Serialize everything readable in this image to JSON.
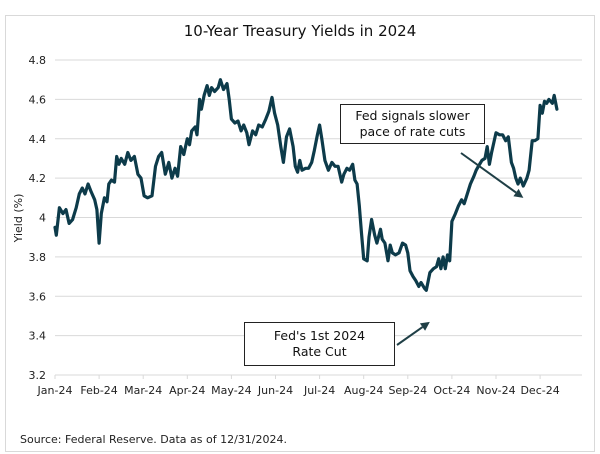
{
  "chart_data": {
    "type": "line",
    "title": "10-Year Treasury Yields in 2024",
    "xlabel": "",
    "ylabel": "Yield (%)",
    "ylim": [
      3.2,
      4.8
    ],
    "yticks": [
      "4.8",
      "4.6",
      "4.4",
      "4.2",
      "4",
      "3.8",
      "3.6",
      "3.4",
      "3.2"
    ],
    "ytick_values": [
      4.8,
      4.6,
      4.4,
      4.2,
      4.0,
      3.8,
      3.6,
      3.4,
      3.2
    ],
    "categories": [
      "Jan-24",
      "Feb-24",
      "Mar-24",
      "Apr-24",
      "May-24",
      "Jun-24",
      "Jul-24",
      "Aug-24",
      "Sep-24",
      "Oct-24",
      "Nov-24",
      "Dec-24"
    ],
    "grid": true,
    "legend": "none",
    "line_color": "#0d3b4a",
    "series": [
      {
        "name": "10-Year Treasury Yield",
        "x_unit": "months since Jan-24 tick",
        "points": [
          [
            0.0,
            3.95
          ],
          [
            0.03,
            3.91
          ],
          [
            0.1,
            4.05
          ],
          [
            0.18,
            4.02
          ],
          [
            0.25,
            4.04
          ],
          [
            0.32,
            3.97
          ],
          [
            0.4,
            3.99
          ],
          [
            0.48,
            4.05
          ],
          [
            0.55,
            4.12
          ],
          [
            0.62,
            4.15
          ],
          [
            0.68,
            4.12
          ],
          [
            0.75,
            4.17
          ],
          [
            0.82,
            4.13
          ],
          [
            0.9,
            4.09
          ],
          [
            0.95,
            4.04
          ],
          [
            1.0,
            3.87
          ],
          [
            1.05,
            4.02
          ],
          [
            1.12,
            4.1
          ],
          [
            1.18,
            4.08
          ],
          [
            1.22,
            4.17
          ],
          [
            1.28,
            4.19
          ],
          [
            1.35,
            4.18
          ],
          [
            1.4,
            4.31
          ],
          [
            1.45,
            4.27
          ],
          [
            1.5,
            4.3
          ],
          [
            1.58,
            4.27
          ],
          [
            1.65,
            4.33
          ],
          [
            1.72,
            4.29
          ],
          [
            1.8,
            4.31
          ],
          [
            1.88,
            4.22
          ],
          [
            1.95,
            4.2
          ],
          [
            2.02,
            4.11
          ],
          [
            2.1,
            4.1
          ],
          [
            2.2,
            4.11
          ],
          [
            2.28,
            4.26
          ],
          [
            2.35,
            4.31
          ],
          [
            2.42,
            4.33
          ],
          [
            2.5,
            4.22
          ],
          [
            2.58,
            4.28
          ],
          [
            2.65,
            4.2
          ],
          [
            2.72,
            4.25
          ],
          [
            2.78,
            4.21
          ],
          [
            2.85,
            4.36
          ],
          [
            2.92,
            4.32
          ],
          [
            3.0,
            4.4
          ],
          [
            3.05,
            4.37
          ],
          [
            3.1,
            4.44
          ],
          [
            3.18,
            4.46
          ],
          [
            3.22,
            4.42
          ],
          [
            3.28,
            4.6
          ],
          [
            3.32,
            4.55
          ],
          [
            3.38,
            4.62
          ],
          [
            3.45,
            4.67
          ],
          [
            3.5,
            4.62
          ],
          [
            3.55,
            4.66
          ],
          [
            3.62,
            4.64
          ],
          [
            3.7,
            4.66
          ],
          [
            3.75,
            4.7
          ],
          [
            3.82,
            4.65
          ],
          [
            3.9,
            4.68
          ],
          [
            3.95,
            4.6
          ],
          [
            4.0,
            4.5
          ],
          [
            4.08,
            4.48
          ],
          [
            4.15,
            4.49
          ],
          [
            4.22,
            4.44
          ],
          [
            4.28,
            4.47
          ],
          [
            4.35,
            4.43
          ],
          [
            4.4,
            4.37
          ],
          [
            4.48,
            4.44
          ],
          [
            4.55,
            4.42
          ],
          [
            4.62,
            4.47
          ],
          [
            4.7,
            4.46
          ],
          [
            4.78,
            4.5
          ],
          [
            4.85,
            4.54
          ],
          [
            4.92,
            4.61
          ],
          [
            4.98,
            4.53
          ],
          [
            5.05,
            4.47
          ],
          [
            5.12,
            4.36
          ],
          [
            5.18,
            4.28
          ],
          [
            5.25,
            4.41
          ],
          [
            5.32,
            4.45
          ],
          [
            5.4,
            4.36
          ],
          [
            5.45,
            4.26
          ],
          [
            5.5,
            4.23
          ],
          [
            5.55,
            4.29
          ],
          [
            5.6,
            4.24
          ],
          [
            5.68,
            4.25
          ],
          [
            5.75,
            4.25
          ],
          [
            5.82,
            4.28
          ],
          [
            5.88,
            4.34
          ],
          [
            5.95,
            4.42
          ],
          [
            6.0,
            4.47
          ],
          [
            6.05,
            4.4
          ],
          [
            6.12,
            4.29
          ],
          [
            6.2,
            4.24
          ],
          [
            6.28,
            4.28
          ],
          [
            6.35,
            4.26
          ],
          [
            6.42,
            4.26
          ],
          [
            6.5,
            4.18
          ],
          [
            6.55,
            4.22
          ],
          [
            6.62,
            4.25
          ],
          [
            6.68,
            4.24
          ],
          [
            6.75,
            4.27
          ],
          [
            6.8,
            4.19
          ],
          [
            6.85,
            4.17
          ],
          [
            6.9,
            4.06
          ],
          [
            6.95,
            3.92
          ],
          [
            7.0,
            3.79
          ],
          [
            7.08,
            3.78
          ],
          [
            7.12,
            3.9
          ],
          [
            7.18,
            3.99
          ],
          [
            7.25,
            3.91
          ],
          [
            7.3,
            3.87
          ],
          [
            7.38,
            3.94
          ],
          [
            7.42,
            3.89
          ],
          [
            7.48,
            3.87
          ],
          [
            7.55,
            3.78
          ],
          [
            7.6,
            3.86
          ],
          [
            7.65,
            3.82
          ],
          [
            7.72,
            3.81
          ],
          [
            7.8,
            3.82
          ],
          [
            7.88,
            3.87
          ],
          [
            7.95,
            3.86
          ],
          [
            8.0,
            3.82
          ],
          [
            8.05,
            3.73
          ],
          [
            8.12,
            3.7
          ],
          [
            8.18,
            3.68
          ],
          [
            8.25,
            3.65
          ],
          [
            8.3,
            3.67
          ],
          [
            8.38,
            3.64
          ],
          [
            8.42,
            3.63
          ],
          [
            8.5,
            3.72
          ],
          [
            8.58,
            3.74
          ],
          [
            8.65,
            3.75
          ],
          [
            8.7,
            3.79
          ],
          [
            8.75,
            3.74
          ],
          [
            8.8,
            3.8
          ],
          [
            8.85,
            3.74
          ],
          [
            8.9,
            3.81
          ],
          [
            8.95,
            3.78
          ],
          [
            9.0,
            3.98
          ],
          [
            9.08,
            4.02
          ],
          [
            9.15,
            4.06
          ],
          [
            9.22,
            4.09
          ],
          [
            9.28,
            4.07
          ],
          [
            9.35,
            4.12
          ],
          [
            9.42,
            4.17
          ],
          [
            9.5,
            4.21
          ],
          [
            9.55,
            4.24
          ],
          [
            9.6,
            4.26
          ],
          [
            9.68,
            4.29
          ],
          [
            9.75,
            4.3
          ],
          [
            9.8,
            4.36
          ],
          [
            9.85,
            4.27
          ],
          [
            9.9,
            4.33
          ],
          [
            9.95,
            4.38
          ],
          [
            10.0,
            4.43
          ],
          [
            10.08,
            4.42
          ],
          [
            10.15,
            4.42
          ],
          [
            10.22,
            4.39
          ],
          [
            10.28,
            4.41
          ],
          [
            10.35,
            4.28
          ],
          [
            10.4,
            4.25
          ],
          [
            10.45,
            4.2
          ],
          [
            10.5,
            4.17
          ],
          [
            10.55,
            4.2
          ],
          [
            10.62,
            4.16
          ],
          [
            10.7,
            4.2
          ],
          [
            10.75,
            4.24
          ],
          [
            10.82,
            4.39
          ],
          [
            10.88,
            4.39
          ],
          [
            10.95,
            4.4
          ],
          [
            11.0,
            4.57
          ],
          [
            11.05,
            4.53
          ],
          [
            11.1,
            4.59
          ],
          [
            11.15,
            4.58
          ],
          [
            11.2,
            4.6
          ],
          [
            11.28,
            4.58
          ],
          [
            11.32,
            4.62
          ],
          [
            11.38,
            4.55
          ]
        ]
      }
    ],
    "annotations": [
      {
        "text_line1": "Fed signals slower",
        "text_line2": "pace of rate cuts",
        "arrow_target_month": 10.62,
        "arrow_target_yield": 4.1
      },
      {
        "text_line1": "Fed's 1st 2024",
        "text_line2": "Rate Cut",
        "arrow_target_month": 8.5,
        "arrow_target_yield": 3.47
      }
    ]
  },
  "source_note": "Source: Federal Reserve. Data as of 12/31/2024."
}
